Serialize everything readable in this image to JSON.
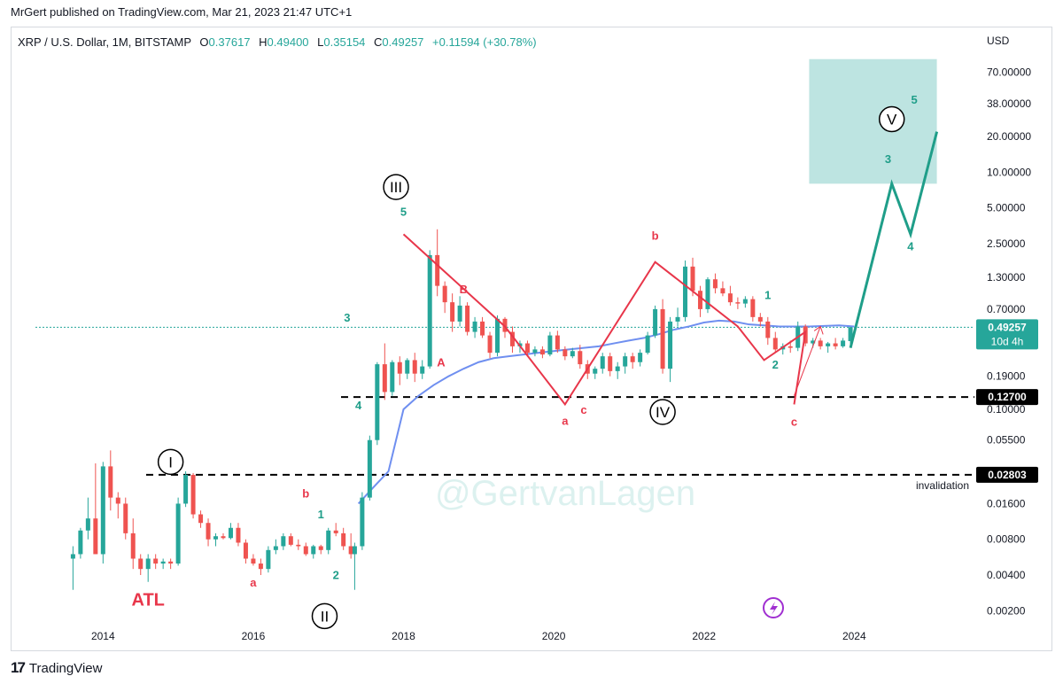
{
  "header": {
    "published": "MrGert published on TradingView.com, Mar 21, 2023 21:47 UTC+1"
  },
  "legend": {
    "symbol": "XRP / U.S. Dollar, 1M, BITSTAMP",
    "o_label": "O",
    "o": "0.37617",
    "h_label": "H",
    "h": "0.49400",
    "l_label": "L",
    "l": "0.35154",
    "c_label": "C",
    "c": "0.49257",
    "change": "+0.11594 (+30.78%)"
  },
  "footer": {
    "brand": "TradingView"
  },
  "watermark": "@GertvanLagen",
  "colors": {
    "up": "#26a69a",
    "down": "#ef5350",
    "ma": "#6f8ff0",
    "wave": "#e8364a",
    "target": "#26a69a",
    "projection": "#1f9e89"
  },
  "chart_data": {
    "type": "candlestick",
    "title": "XRP / U.S. Dollar, 1M, BITSTAMP",
    "y_axis": {
      "unit_label": "USD",
      "scale": "log",
      "range": [
        0.0015,
        120
      ],
      "ticks": [
        "70.00000",
        "38.00000",
        "20.00000",
        "10.00000",
        "5.00000",
        "2.50000",
        "1.30000",
        "0.70000",
        "0.19000",
        "0.10000",
        "0.05500",
        "0.01600",
        "0.00800",
        "0.00400",
        "0.00200"
      ]
    },
    "x_axis": {
      "range": [
        2013.1,
        2025.6
      ],
      "ticks": [
        "2014",
        "2016",
        "2018",
        "2020",
        "2022",
        "2024"
      ]
    },
    "price_line": {
      "value": 0.49257,
      "label": "0.49257",
      "countdown": "10d 4h"
    },
    "levels": [
      {
        "value": 0.127,
        "label": "0.12700"
      },
      {
        "value": 0.02803,
        "label": "0.02803",
        "note": "invalidation"
      }
    ],
    "target_zone": {
      "x": [
        2023.4,
        2025.1
      ],
      "y": [
        8,
        90
      ]
    },
    "candles": [
      {
        "t": 2013.6,
        "o": 0.0055,
        "h": 0.007,
        "l": 0.003,
        "c": 0.006
      },
      {
        "t": 2013.7,
        "o": 0.006,
        "h": 0.01,
        "l": 0.0055,
        "c": 0.0095
      },
      {
        "t": 2013.8,
        "o": 0.0095,
        "h": 0.018,
        "l": 0.008,
        "c": 0.012
      },
      {
        "t": 2013.9,
        "o": 0.012,
        "h": 0.035,
        "l": 0.006,
        "c": 0.006
      },
      {
        "t": 2014.0,
        "o": 0.006,
        "h": 0.036,
        "l": 0.005,
        "c": 0.033
      },
      {
        "t": 2014.1,
        "o": 0.033,
        "h": 0.045,
        "l": 0.014,
        "c": 0.018
      },
      {
        "t": 2014.2,
        "o": 0.018,
        "h": 0.02,
        "l": 0.012,
        "c": 0.016
      },
      {
        "t": 2014.3,
        "o": 0.016,
        "h": 0.018,
        "l": 0.008,
        "c": 0.009
      },
      {
        "t": 2014.4,
        "o": 0.009,
        "h": 0.012,
        "l": 0.0045,
        "c": 0.0055
      },
      {
        "t": 2014.5,
        "o": 0.0055,
        "h": 0.006,
        "l": 0.004,
        "c": 0.0045
      },
      {
        "t": 2014.6,
        "o": 0.0045,
        "h": 0.006,
        "l": 0.0035,
        "c": 0.0055
      },
      {
        "t": 2014.7,
        "o": 0.0055,
        "h": 0.006,
        "l": 0.0045,
        "c": 0.005
      },
      {
        "t": 2014.8,
        "o": 0.005,
        "h": 0.0055,
        "l": 0.0045,
        "c": 0.0052
      },
      {
        "t": 2014.9,
        "o": 0.0052,
        "h": 0.0055,
        "l": 0.0045,
        "c": 0.005
      },
      {
        "t": 2015.0,
        "o": 0.005,
        "h": 0.018,
        "l": 0.0048,
        "c": 0.016
      },
      {
        "t": 2015.1,
        "o": 0.016,
        "h": 0.03,
        "l": 0.015,
        "c": 0.028
      },
      {
        "t": 2015.2,
        "o": 0.028,
        "h": 0.029,
        "l": 0.012,
        "c": 0.013
      },
      {
        "t": 2015.3,
        "o": 0.013,
        "h": 0.014,
        "l": 0.01,
        "c": 0.011
      },
      {
        "t": 2015.4,
        "o": 0.011,
        "h": 0.012,
        "l": 0.007,
        "c": 0.008
      },
      {
        "t": 2015.5,
        "o": 0.008,
        "h": 0.009,
        "l": 0.007,
        "c": 0.0085
      },
      {
        "t": 2015.6,
        "o": 0.0085,
        "h": 0.009,
        "l": 0.008,
        "c": 0.0082
      },
      {
        "t": 2015.7,
        "o": 0.0082,
        "h": 0.011,
        "l": 0.008,
        "c": 0.01
      },
      {
        "t": 2015.8,
        "o": 0.01,
        "h": 0.011,
        "l": 0.007,
        "c": 0.0075
      },
      {
        "t": 2015.9,
        "o": 0.0075,
        "h": 0.008,
        "l": 0.005,
        "c": 0.0055
      },
      {
        "t": 2016.0,
        "o": 0.0055,
        "h": 0.006,
        "l": 0.0048,
        "c": 0.005
      },
      {
        "t": 2016.1,
        "o": 0.005,
        "h": 0.0055,
        "l": 0.004,
        "c": 0.0045
      },
      {
        "t": 2016.2,
        "o": 0.0045,
        "h": 0.007,
        "l": 0.0042,
        "c": 0.0065
      },
      {
        "t": 2016.3,
        "o": 0.0065,
        "h": 0.008,
        "l": 0.006,
        "c": 0.007
      },
      {
        "t": 2016.4,
        "o": 0.007,
        "h": 0.009,
        "l": 0.0065,
        "c": 0.0085
      },
      {
        "t": 2016.5,
        "o": 0.0085,
        "h": 0.009,
        "l": 0.007,
        "c": 0.0072
      },
      {
        "t": 2016.6,
        "o": 0.0072,
        "h": 0.008,
        "l": 0.0065,
        "c": 0.007
      },
      {
        "t": 2016.7,
        "o": 0.007,
        "h": 0.0075,
        "l": 0.0058,
        "c": 0.006
      },
      {
        "t": 2016.8,
        "o": 0.006,
        "h": 0.0072,
        "l": 0.0055,
        "c": 0.007
      },
      {
        "t": 2016.9,
        "o": 0.007,
        "h": 0.0072,
        "l": 0.006,
        "c": 0.0065
      },
      {
        "t": 2017.0,
        "o": 0.0065,
        "h": 0.01,
        "l": 0.006,
        "c": 0.0095
      },
      {
        "t": 2017.1,
        "o": 0.0095,
        "h": 0.011,
        "l": 0.0085,
        "c": 0.009
      },
      {
        "t": 2017.2,
        "o": 0.009,
        "h": 0.01,
        "l": 0.0065,
        "c": 0.007
      },
      {
        "t": 2017.3,
        "o": 0.007,
        "h": 0.009,
        "l": 0.0055,
        "c": 0.006
      },
      {
        "t": 2017.35,
        "o": 0.006,
        "h": 0.0075,
        "l": 0.003,
        "c": 0.007
      },
      {
        "t": 2017.45,
        "o": 0.007,
        "h": 0.02,
        "l": 0.0065,
        "c": 0.018
      },
      {
        "t": 2017.55,
        "o": 0.018,
        "h": 0.06,
        "l": 0.017,
        "c": 0.055
      },
      {
        "t": 2017.65,
        "o": 0.055,
        "h": 0.25,
        "l": 0.05,
        "c": 0.24
      },
      {
        "t": 2017.75,
        "o": 0.24,
        "h": 0.36,
        "l": 0.12,
        "c": 0.14
      },
      {
        "t": 2017.85,
        "o": 0.14,
        "h": 0.26,
        "l": 0.13,
        "c": 0.25
      },
      {
        "t": 2017.95,
        "o": 0.25,
        "h": 0.28,
        "l": 0.16,
        "c": 0.2
      },
      {
        "t": 2018.05,
        "o": 0.2,
        "h": 0.27,
        "l": 0.18,
        "c": 0.26
      },
      {
        "t": 2018.15,
        "o": 0.26,
        "h": 0.3,
        "l": 0.17,
        "c": 0.2
      },
      {
        "t": 2018.25,
        "o": 0.2,
        "h": 0.26,
        "l": 0.18,
        "c": 0.23
      },
      {
        "t": 2018.35,
        "o": 0.23,
        "h": 2.2,
        "l": 0.22,
        "c": 2.0
      },
      {
        "t": 2018.45,
        "o": 2.0,
        "h": 3.3,
        "l": 0.9,
        "c": 1.1
      },
      {
        "t": 2018.55,
        "o": 1.1,
        "h": 1.2,
        "l": 0.65,
        "c": 0.8
      },
      {
        "t": 2018.65,
        "o": 0.8,
        "h": 0.95,
        "l": 0.45,
        "c": 0.55
      },
      {
        "t": 2018.75,
        "o": 0.55,
        "h": 0.9,
        "l": 0.5,
        "c": 0.75
      },
      {
        "t": 2018.85,
        "o": 0.75,
        "h": 0.8,
        "l": 0.42,
        "c": 0.45
      },
      {
        "t": 2018.95,
        "o": 0.45,
        "h": 0.6,
        "l": 0.4,
        "c": 0.55
      },
      {
        "t": 2019.05,
        "o": 0.55,
        "h": 0.6,
        "l": 0.4,
        "c": 0.42
      },
      {
        "t": 2019.15,
        "o": 0.42,
        "h": 0.45,
        "l": 0.27,
        "c": 0.3
      },
      {
        "t": 2019.25,
        "o": 0.3,
        "h": 0.62,
        "l": 0.28,
        "c": 0.58
      },
      {
        "t": 2019.35,
        "o": 0.58,
        "h": 0.6,
        "l": 0.4,
        "c": 0.45
      },
      {
        "t": 2019.45,
        "o": 0.45,
        "h": 0.5,
        "l": 0.3,
        "c": 0.34
      },
      {
        "t": 2019.55,
        "o": 0.34,
        "h": 0.38,
        "l": 0.3,
        "c": 0.36
      },
      {
        "t": 2019.65,
        "o": 0.36,
        "h": 0.38,
        "l": 0.28,
        "c": 0.3
      },
      {
        "t": 2019.75,
        "o": 0.3,
        "h": 0.34,
        "l": 0.28,
        "c": 0.32
      },
      {
        "t": 2019.85,
        "o": 0.32,
        "h": 0.34,
        "l": 0.27,
        "c": 0.29
      },
      {
        "t": 2019.95,
        "o": 0.29,
        "h": 0.45,
        "l": 0.28,
        "c": 0.42
      },
      {
        "t": 2020.05,
        "o": 0.42,
        "h": 0.46,
        "l": 0.3,
        "c": 0.32
      },
      {
        "t": 2020.15,
        "o": 0.32,
        "h": 0.34,
        "l": 0.26,
        "c": 0.28
      },
      {
        "t": 2020.25,
        "o": 0.28,
        "h": 0.33,
        "l": 0.27,
        "c": 0.31
      },
      {
        "t": 2020.35,
        "o": 0.31,
        "h": 0.35,
        "l": 0.22,
        "c": 0.24
      },
      {
        "t": 2020.45,
        "o": 0.24,
        "h": 0.26,
        "l": 0.18,
        "c": 0.2
      },
      {
        "t": 2020.55,
        "o": 0.2,
        "h": 0.23,
        "l": 0.18,
        "c": 0.22
      },
      {
        "t": 2020.65,
        "o": 0.22,
        "h": 0.3,
        "l": 0.2,
        "c": 0.28
      },
      {
        "t": 2020.75,
        "o": 0.28,
        "h": 0.3,
        "l": 0.19,
        "c": 0.21
      },
      {
        "t": 2020.85,
        "o": 0.21,
        "h": 0.25,
        "l": 0.18,
        "c": 0.23
      },
      {
        "t": 2020.95,
        "o": 0.23,
        "h": 0.3,
        "l": 0.2,
        "c": 0.28
      },
      {
        "t": 2021.05,
        "o": 0.28,
        "h": 0.3,
        "l": 0.22,
        "c": 0.25
      },
      {
        "t": 2021.15,
        "o": 0.25,
        "h": 0.32,
        "l": 0.23,
        "c": 0.3
      },
      {
        "t": 2021.25,
        "o": 0.3,
        "h": 0.45,
        "l": 0.29,
        "c": 0.42
      },
      {
        "t": 2021.35,
        "o": 0.42,
        "h": 0.75,
        "l": 0.4,
        "c": 0.7
      },
      {
        "t": 2021.45,
        "o": 0.7,
        "h": 0.85,
        "l": 0.2,
        "c": 0.22
      },
      {
        "t": 2021.55,
        "o": 0.22,
        "h": 0.6,
        "l": 0.17,
        "c": 0.55
      },
      {
        "t": 2021.65,
        "o": 0.55,
        "h": 0.72,
        "l": 0.5,
        "c": 0.6
      },
      {
        "t": 2021.75,
        "o": 0.6,
        "h": 1.8,
        "l": 0.55,
        "c": 1.6
      },
      {
        "t": 2021.85,
        "o": 1.6,
        "h": 1.9,
        "l": 0.9,
        "c": 1.0
      },
      {
        "t": 2021.95,
        "o": 1.0,
        "h": 1.1,
        "l": 0.6,
        "c": 0.7
      },
      {
        "t": 2022.05,
        "o": 0.7,
        "h": 1.3,
        "l": 0.65,
        "c": 1.25
      },
      {
        "t": 2022.15,
        "o": 1.25,
        "h": 1.4,
        "l": 0.95,
        "c": 1.05
      },
      {
        "t": 2022.25,
        "o": 1.05,
        "h": 1.2,
        "l": 0.9,
        "c": 0.95
      },
      {
        "t": 2022.35,
        "o": 0.95,
        "h": 1.1,
        "l": 0.75,
        "c": 0.8
      },
      {
        "t": 2022.45,
        "o": 0.8,
        "h": 0.88,
        "l": 0.7,
        "c": 0.78
      },
      {
        "t": 2022.55,
        "o": 0.78,
        "h": 0.9,
        "l": 0.72,
        "c": 0.85
      },
      {
        "t": 2022.65,
        "o": 0.85,
        "h": 0.9,
        "l": 0.55,
        "c": 0.6
      },
      {
        "t": 2022.75,
        "o": 0.6,
        "h": 0.65,
        "l": 0.5,
        "c": 0.55
      },
      {
        "t": 2022.85,
        "o": 0.55,
        "h": 0.6,
        "l": 0.35,
        "c": 0.4
      },
      {
        "t": 2022.95,
        "o": 0.4,
        "h": 0.45,
        "l": 0.3,
        "c": 0.32
      },
      {
        "t": 2023.05,
        "o": 0.32,
        "h": 0.36,
        "l": 0.29,
        "c": 0.34
      },
      {
        "t": 2023.15,
        "o": 0.34,
        "h": 0.38,
        "l": 0.3,
        "c": 0.33
      },
      {
        "t": 2023.25,
        "o": 0.33,
        "h": 0.55,
        "l": 0.31,
        "c": 0.5
      },
      {
        "t": 2023.35,
        "o": 0.5,
        "h": 0.52,
        "l": 0.34,
        "c": 0.36
      },
      {
        "t": 2023.45,
        "o": 0.36,
        "h": 0.4,
        "l": 0.33,
        "c": 0.38
      },
      {
        "t": 2023.55,
        "o": 0.38,
        "h": 0.4,
        "l": 0.32,
        "c": 0.34
      },
      {
        "t": 2023.65,
        "o": 0.34,
        "h": 0.37,
        "l": 0.3,
        "c": 0.36
      },
      {
        "t": 2023.75,
        "o": 0.36,
        "h": 0.4,
        "l": 0.32,
        "c": 0.34
      },
      {
        "t": 2023.85,
        "o": 0.34,
        "h": 0.4,
        "l": 0.33,
        "c": 0.38
      },
      {
        "t": 2023.95,
        "o": 0.37617,
        "h": 0.494,
        "l": 0.35154,
        "c": 0.49257
      }
    ],
    "moving_average": [
      [
        2017.4,
        0.016
      ],
      [
        2017.6,
        0.022
      ],
      [
        2017.8,
        0.03
      ],
      [
        2018.0,
        0.1
      ],
      [
        2018.2,
        0.13
      ],
      [
        2018.4,
        0.16
      ],
      [
        2018.6,
        0.19
      ],
      [
        2018.8,
        0.22
      ],
      [
        2019.0,
        0.25
      ],
      [
        2019.2,
        0.27
      ],
      [
        2019.4,
        0.28
      ],
      [
        2019.6,
        0.29
      ],
      [
        2019.8,
        0.3
      ],
      [
        2020.0,
        0.31
      ],
      [
        2020.2,
        0.32
      ],
      [
        2020.4,
        0.33
      ],
      [
        2020.6,
        0.34
      ],
      [
        2020.8,
        0.36
      ],
      [
        2021.0,
        0.38
      ],
      [
        2021.2,
        0.4
      ],
      [
        2021.4,
        0.43
      ],
      [
        2021.6,
        0.47
      ],
      [
        2021.8,
        0.5
      ],
      [
        2022.0,
        0.54
      ],
      [
        2022.2,
        0.56
      ],
      [
        2022.4,
        0.55
      ],
      [
        2022.6,
        0.52
      ],
      [
        2022.8,
        0.51
      ],
      [
        2023.0,
        0.5
      ],
      [
        2023.2,
        0.5
      ],
      [
        2023.4,
        0.5
      ],
      [
        2023.6,
        0.505
      ],
      [
        2023.8,
        0.51
      ],
      [
        2024.0,
        0.5
      ]
    ],
    "wave_lines": [
      [
        [
          2018.0,
          3.0
        ],
        [
          2019.35,
          0.5
        ],
        [
          2020.15,
          0.11
        ],
        [
          2021.35,
          1.75
        ],
        [
          2022.45,
          0.5
        ],
        [
          2022.8,
          0.26
        ],
        [
          2023.35,
          0.45
        ],
        [
          2023.2,
          0.11
        ]
      ]
    ],
    "projection": [
      [
        2023.95,
        0.33
      ],
      [
        2024.5,
        8
      ],
      [
        2024.75,
        3
      ],
      [
        2025.1,
        22
      ]
    ],
    "projection_arrow": [
      [
        2023.2,
        0.13
      ],
      [
        2023.55,
        0.5
      ]
    ],
    "wave_labels": [
      {
        "text": "I",
        "x": 2014.9,
        "y": 0.036,
        "circled": true
      },
      {
        "text": "II",
        "x": 2016.95,
        "y": 0.0018,
        "circled": true
      },
      {
        "text": "III",
        "x": 2017.9,
        "y": 7.5,
        "circled": true
      },
      {
        "text": "IV",
        "x": 2021.45,
        "y": 0.095,
        "circled": true
      },
      {
        "text": "V",
        "x": 2024.5,
        "y": 28,
        "circled": true
      },
      {
        "text": "5",
        "x": 2018.0,
        "y": 4.3,
        "color": "up"
      },
      {
        "text": "3",
        "x": 2017.25,
        "y": 0.55,
        "color": "up"
      },
      {
        "text": "4",
        "x": 2017.4,
        "y": 0.1,
        "color": "up"
      },
      {
        "text": "1",
        "x": 2016.9,
        "y": 0.012,
        "color": "up"
      },
      {
        "text": "2",
        "x": 2017.1,
        "y": 0.0037,
        "color": "up"
      },
      {
        "text": "ATL",
        "x": 2014.6,
        "y": 0.0022,
        "color": "down",
        "size": 20
      },
      {
        "text": "a",
        "x": 2016.0,
        "y": 0.0032,
        "color": "down"
      },
      {
        "text": "b",
        "x": 2016.7,
        "y": 0.018,
        "color": "down"
      },
      {
        "text": "A",
        "x": 2018.5,
        "y": 0.23,
        "color": "down"
      },
      {
        "text": "B",
        "x": 2018.8,
        "y": 0.95,
        "color": "down"
      },
      {
        "text": "a",
        "x": 2020.15,
        "y": 0.074,
        "color": "down"
      },
      {
        "text": "c",
        "x": 2020.4,
        "y": 0.092,
        "color": "down"
      },
      {
        "text": "b",
        "x": 2021.35,
        "y": 2.7,
        "color": "down"
      },
      {
        "text": "c",
        "x": 2023.2,
        "y": 0.073,
        "color": "down"
      },
      {
        "text": "1",
        "x": 2022.85,
        "y": 0.85,
        "color": "up"
      },
      {
        "text": "2",
        "x": 2022.95,
        "y": 0.22,
        "color": "up"
      },
      {
        "text": "3",
        "x": 2024.45,
        "y": 12,
        "color": "up"
      },
      {
        "text": "4",
        "x": 2024.75,
        "y": 2.2,
        "color": "up"
      },
      {
        "text": "5",
        "x": 2024.8,
        "y": 38,
        "color": "up"
      }
    ]
  }
}
